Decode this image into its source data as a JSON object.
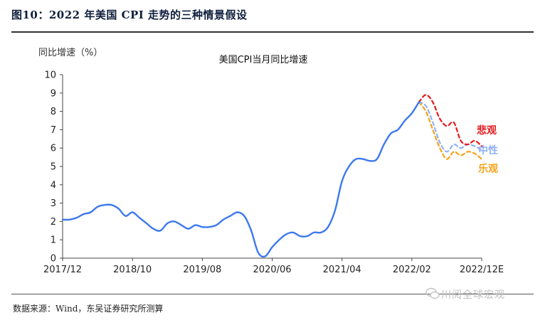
{
  "figure": {
    "title": "图10：2022 年美国 CPI 走势的三种情景假设",
    "source": "数据来源：Wind，东吴证券研究所测算",
    "watermark": "川阅全球宏观"
  },
  "colors": {
    "history": "#3c78f0",
    "pessimistic": "#e31a1c",
    "neutral": "#8fb1f5",
    "optimistic": "#f5a31a",
    "axis": "#444444"
  },
  "chart_data": {
    "type": "line",
    "title": "美国CPI当月同比增速",
    "ylabel": "同比增速（%）",
    "xlabel": "",
    "ylim": [
      0,
      10
    ],
    "yticks": [
      0,
      1,
      2,
      3,
      4,
      5,
      6,
      7,
      8,
      9,
      10
    ],
    "x_range": [
      "2017-12",
      "2022-12"
    ],
    "xtick_labels": [
      {
        "x": "2017-12",
        "label": "2017/12"
      },
      {
        "x": "2018-10",
        "label": "2018/10"
      },
      {
        "x": "2019-08",
        "label": "2019/08"
      },
      {
        "x": "2020-06",
        "label": "2020/06"
      },
      {
        "x": "2021-04",
        "label": "2021/04"
      },
      {
        "x": "2022-02",
        "label": "2022/02"
      },
      {
        "x": "2022-12",
        "label": "2022/12E"
      }
    ],
    "grid": false,
    "series": [
      {
        "key": "history",
        "style": "solid",
        "x": [
          "2017-12",
          "2018-01",
          "2018-02",
          "2018-03",
          "2018-04",
          "2018-05",
          "2018-06",
          "2018-07",
          "2018-08",
          "2018-09",
          "2018-10",
          "2018-11",
          "2018-12",
          "2019-01",
          "2019-02",
          "2019-03",
          "2019-04",
          "2019-05",
          "2019-06",
          "2019-07",
          "2019-08",
          "2019-09",
          "2019-10",
          "2019-11",
          "2019-12",
          "2020-01",
          "2020-02",
          "2020-03",
          "2020-04",
          "2020-05",
          "2020-06",
          "2020-07",
          "2020-08",
          "2020-09",
          "2020-10",
          "2020-11",
          "2020-12",
          "2021-01",
          "2021-02",
          "2021-03",
          "2021-04",
          "2021-05",
          "2021-06",
          "2021-07",
          "2021-08",
          "2021-09",
          "2021-10",
          "2021-11",
          "2021-12",
          "2022-01",
          "2022-02",
          "2022-03"
        ],
        "values": [
          2.1,
          2.1,
          2.2,
          2.4,
          2.5,
          2.8,
          2.9,
          2.9,
          2.7,
          2.3,
          2.5,
          2.2,
          1.9,
          1.6,
          1.5,
          1.9,
          2.0,
          1.8,
          1.6,
          1.8,
          1.7,
          1.7,
          1.8,
          2.1,
          2.3,
          2.5,
          2.3,
          1.5,
          0.3,
          0.1,
          0.6,
          1.0,
          1.3,
          1.4,
          1.2,
          1.2,
          1.4,
          1.4,
          1.7,
          2.6,
          4.2,
          5.0,
          5.4,
          5.4,
          5.3,
          5.4,
          6.2,
          6.8,
          7.0,
          7.5,
          7.9,
          8.5
        ]
      },
      {
        "key": "pessimistic",
        "name": "悲观",
        "style": "dashed",
        "x": [
          "2022-03",
          "2022-04",
          "2022-05",
          "2022-06",
          "2022-07",
          "2022-08",
          "2022-09",
          "2022-10",
          "2022-11",
          "2022-12"
        ],
        "values": [
          8.5,
          8.9,
          8.5,
          7.6,
          7.2,
          7.4,
          6.4,
          6.2,
          6.4,
          6.1
        ]
      },
      {
        "key": "neutral",
        "name": "中性",
        "style": "dashed",
        "x": [
          "2022-03",
          "2022-04",
          "2022-05",
          "2022-06",
          "2022-07",
          "2022-08",
          "2022-09",
          "2022-10",
          "2022-11",
          "2022-12"
        ],
        "values": [
          8.5,
          8.3,
          7.4,
          6.3,
          5.8,
          6.2,
          6.0,
          6.2,
          6.1,
          5.9
        ]
      },
      {
        "key": "optimistic",
        "name": "乐观",
        "style": "dashed",
        "x": [
          "2022-03",
          "2022-04",
          "2022-05",
          "2022-06",
          "2022-07",
          "2022-08",
          "2022-09",
          "2022-10",
          "2022-11",
          "2022-12"
        ],
        "values": [
          8.5,
          8.0,
          7.0,
          6.0,
          5.4,
          5.8,
          5.6,
          5.8,
          5.7,
          5.4
        ]
      }
    ]
  }
}
